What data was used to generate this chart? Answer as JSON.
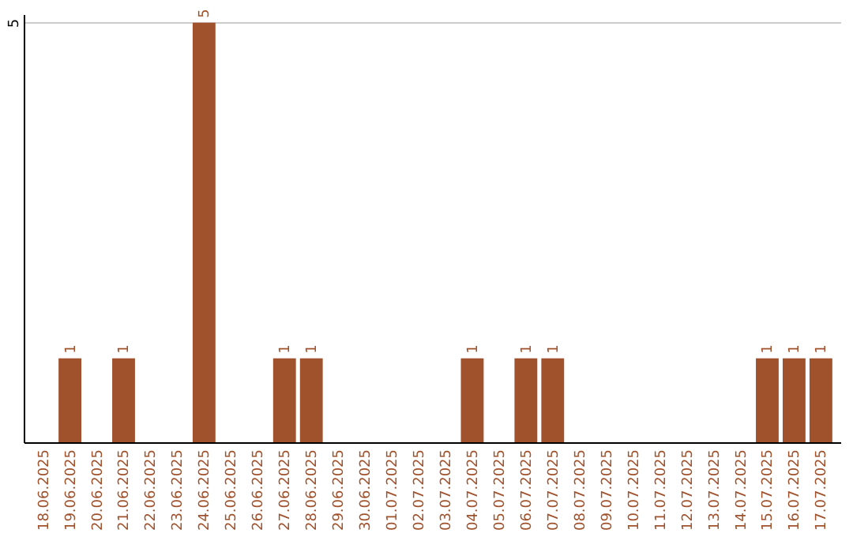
{
  "chart_data": {
    "type": "bar",
    "categories": [
      "18.06.2025",
      "19.06.2025",
      "20.06.2025",
      "21.06.2025",
      "22.06.2025",
      "23.06.2025",
      "24.06.2025",
      "25.06.2025",
      "26.06.2025",
      "27.06.2025",
      "28.06.2025",
      "29.06.2025",
      "30.06.2025",
      "01.07.2025",
      "02.07.2025",
      "03.07.2025",
      "04.07.2025",
      "05.07.2025",
      "06.07.2025",
      "07.07.2025",
      "08.07.2025",
      "09.07.2025",
      "10.07.2025",
      "11.07.2025",
      "12.07.2025",
      "13.07.2025",
      "14.07.2025",
      "15.07.2025",
      "16.07.2025",
      "17.07.2025"
    ],
    "values": [
      0,
      1,
      0,
      1,
      0,
      0,
      5,
      0,
      0,
      1,
      1,
      0,
      0,
      0,
      0,
      0,
      1,
      0,
      1,
      1,
      0,
      0,
      0,
      0,
      0,
      0,
      0,
      1,
      1,
      1
    ],
    "value_labels": [
      null,
      "1",
      null,
      "1",
      null,
      null,
      "5",
      null,
      null,
      "1",
      "1",
      null,
      null,
      null,
      null,
      null,
      "1",
      null,
      "1",
      "1",
      null,
      null,
      null,
      null,
      null,
      null,
      null,
      "1",
      "1",
      "1"
    ],
    "color": "#a0522d",
    "ylim": [
      0,
      5.1
    ],
    "yticks": [
      5
    ],
    "grid": "y"
  }
}
